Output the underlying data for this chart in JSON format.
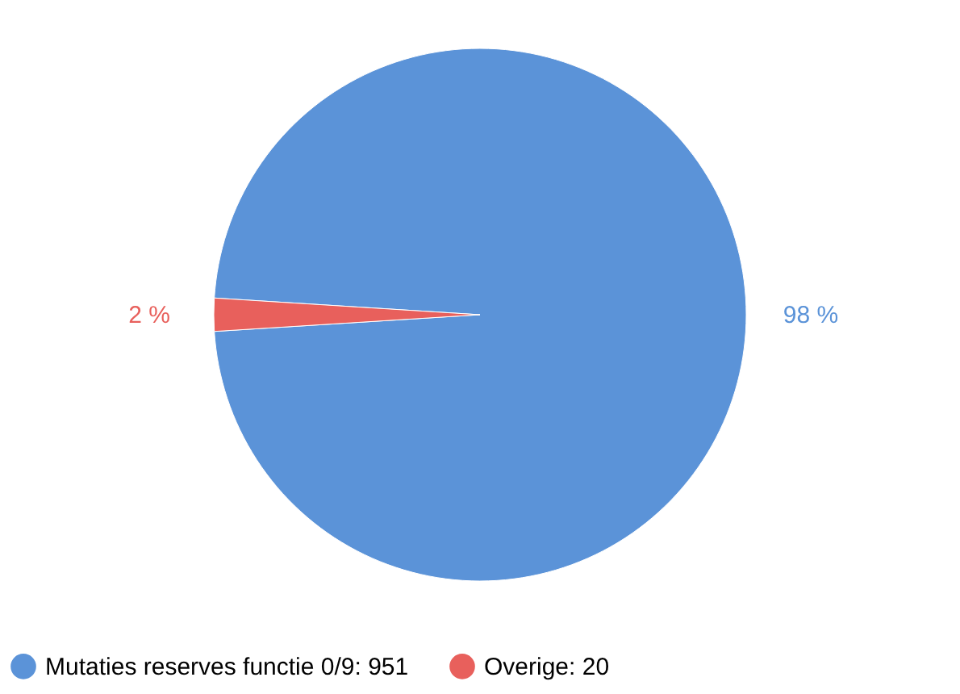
{
  "chart_data": {
    "type": "pie",
    "categories": [
      "Mutaties reserves functie 0/9: 951",
      "Overige: 20"
    ],
    "values": [
      98,
      2
    ],
    "colors": [
      "#5b93d8",
      "#e8605c"
    ],
    "value_labels": [
      "98 %",
      "2 %"
    ],
    "legend": "bottom"
  }
}
